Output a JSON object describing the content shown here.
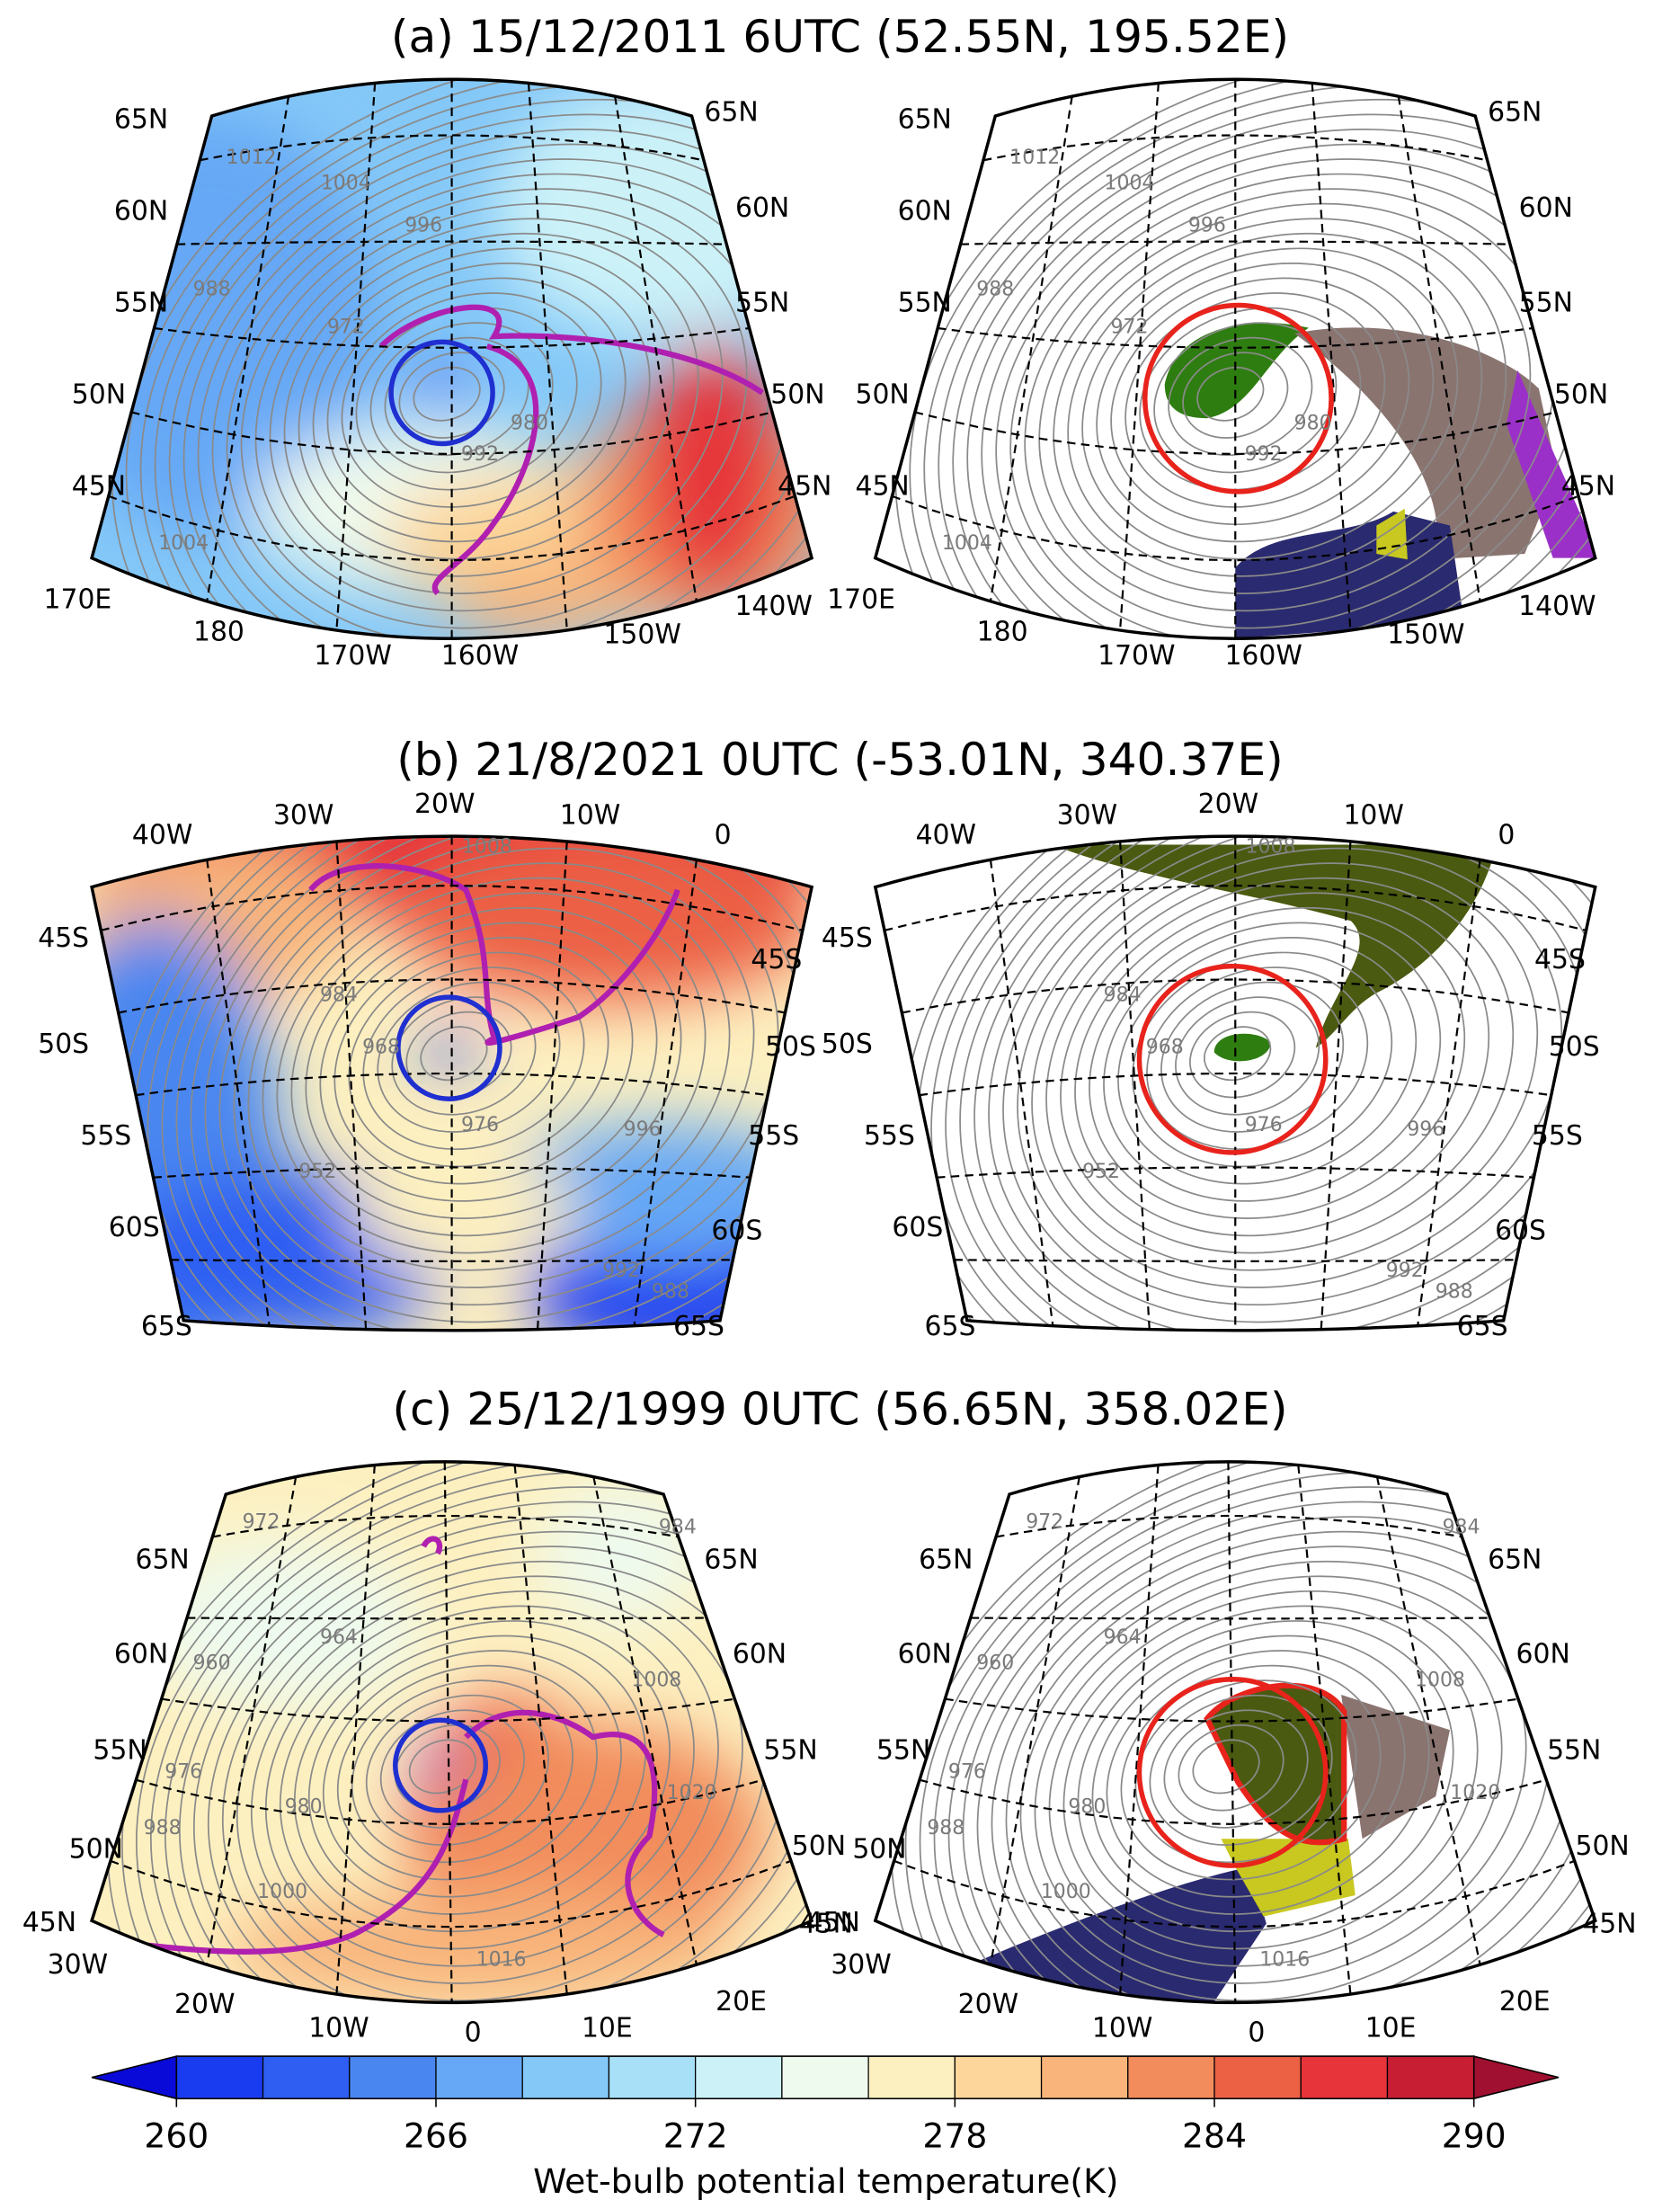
{
  "panels": [
    {
      "title": "(a) 15/12/2011 6UTC (52.55N, 195.52E)",
      "lats": [
        "65N",
        "60N",
        "55N",
        "50N",
        "45N"
      ],
      "lons": [
        "170E",
        "180",
        "170W",
        "160W",
        "150W",
        "140W"
      ],
      "contour_labels": [
        "1012",
        "1004",
        "996",
        "988",
        "972",
        "980",
        "992",
        "1004"
      ]
    },
    {
      "title": "(b) 21/8/2021 0UTC (-53.01N, 340.37E)",
      "lats": [
        "45S",
        "50S",
        "55S",
        "60S",
        "65S"
      ],
      "lons": [
        "40W",
        "30W",
        "20W",
        "10W",
        "0"
      ],
      "contour_labels": [
        "1008",
        "984",
        "968",
        "952",
        "976",
        "996",
        "992",
        "988"
      ]
    },
    {
      "title": "(c) 25/12/1999 0UTC (56.65N, 358.02E)",
      "lats": [
        "65N",
        "60N",
        "55N",
        "50N",
        "45N"
      ],
      "lons": [
        "30W",
        "20W",
        "10W",
        "0",
        "10E",
        "20E"
      ],
      "contour_labels": [
        "972",
        "964",
        "960",
        "976",
        "988",
        "980",
        "1000",
        "1008",
        "1020",
        "1016",
        "984"
      ]
    }
  ],
  "colorbar": {
    "label": "Wet-bulb potential temperature(K)",
    "levels": [
      260,
      262,
      264,
      266,
      268,
      270,
      272,
      274,
      276,
      278,
      280,
      282,
      284,
      286,
      288,
      290
    ],
    "colors": [
      "#1a3cf0",
      "#2e5ef2",
      "#4a86f0",
      "#66a8f5",
      "#84c8f8",
      "#a8e0f8",
      "#ccf2f8",
      "#eefaee",
      "#fdf0c0",
      "#fcd69a",
      "#f8b47a",
      "#f28c5c",
      "#ec6044",
      "#e6343a",
      "#c81e34"
    ],
    "under_color": "#0a0ad8",
    "over_color": "#a01030",
    "ticks": [
      260,
      266,
      272,
      278,
      284,
      290
    ]
  }
}
